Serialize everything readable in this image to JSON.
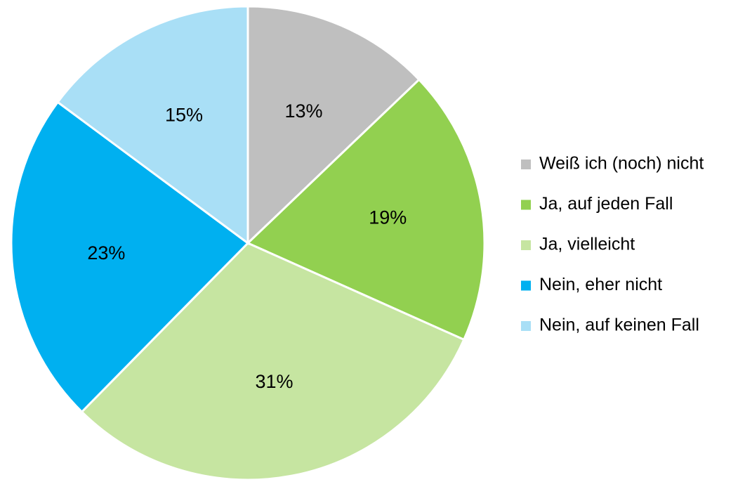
{
  "chart_data": {
    "type": "pie",
    "categories": [
      "Weiß ich (noch) nicht",
      "Ja, auf jeden Fall",
      "Ja, vielleicht",
      "Nein, eher nicht",
      "Nein, auf keinen Fall"
    ],
    "values": [
      13,
      19,
      31,
      23,
      15
    ],
    "value_labels": [
      "13%",
      "19%",
      "31%",
      "23%",
      "15%"
    ],
    "colors": [
      "#bfbfbf",
      "#92d050",
      "#c6e5a1",
      "#00b0f0",
      "#a9dff6"
    ],
    "legend": "right"
  }
}
